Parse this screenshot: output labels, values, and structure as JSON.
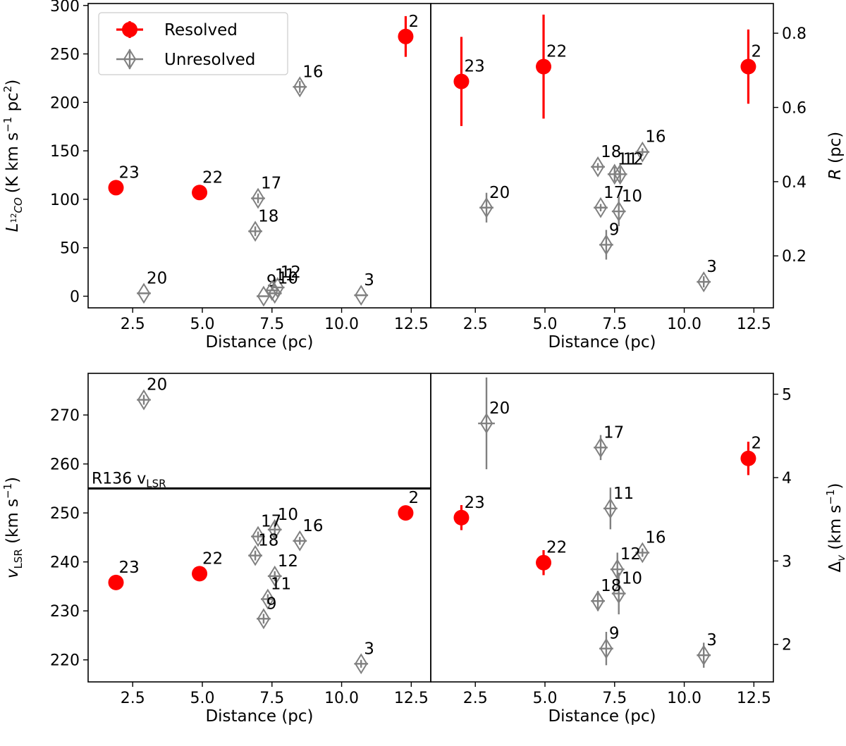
{
  "colors": {
    "resolved": "#ff0000",
    "unresolved": "#808080",
    "axis": "#000000"
  },
  "legend": {
    "resolved_label": "Resolved",
    "unresolved_label": "Unresolved"
  },
  "chart_data": [
    {
      "id": "top-left",
      "type": "scatter",
      "xlabel": "Distance (pc)",
      "ylabel_main": "L",
      "ylabel_sub": "12",
      "ylabel_sub2": "CO",
      "ylabel_paren": "(K km s",
      "ylabel_exp1": "−1",
      "ylabel_mid": " pc",
      "ylabel_exp2": "2",
      "ylabel_close": ")",
      "xlim": [
        0.9,
        13.2
      ],
      "ylim": [
        -12,
        302
      ],
      "xticks": [
        2.5,
        5.0,
        7.5,
        10.0,
        12.5
      ],
      "xtick_labels": [
        "2.5",
        "5.0",
        "7.5",
        "10.0",
        "12.5"
      ],
      "yticks": [
        0,
        50,
        100,
        150,
        200,
        250,
        300
      ],
      "ytick_labels": [
        "0",
        "50",
        "100",
        "150",
        "200",
        "250",
        "300"
      ],
      "yaxis_side": "left",
      "series": [
        {
          "name": "Resolved",
          "points": [
            {
              "label": "2",
              "x": 12.3,
              "y": 268,
              "xerr": 0.25,
              "yerr": 21
            },
            {
              "label": "23",
              "x": 1.9,
              "y": 112,
              "xerr": 0.25,
              "yerr": 0
            },
            {
              "label": "22",
              "x": 4.9,
              "y": 107,
              "xerr": 0.25,
              "yerr": 0
            }
          ]
        },
        {
          "name": "Unresolved",
          "points": [
            {
              "label": "16",
              "x": 8.5,
              "y": 216,
              "xerr": 0.25,
              "yerr": 6
            },
            {
              "label": "17",
              "x": 7.0,
              "y": 101,
              "xerr": 0.25,
              "yerr": 5
            },
            {
              "label": "18",
              "x": 6.9,
              "y": 67,
              "xerr": 0.25,
              "yerr": 5
            },
            {
              "label": "20",
              "x": 2.9,
              "y": 3,
              "xerr": 0.25,
              "yerr": 0
            },
            {
              "label": "3",
              "x": 10.7,
              "y": 1,
              "xerr": 0.25,
              "yerr": 0
            },
            {
              "label": "9",
              "x": 7.2,
              "y": 0,
              "xerr": 0.25,
              "yerr": 0
            },
            {
              "label": "11",
              "x": 7.5,
              "y": 6,
              "xerr": 0.25,
              "yerr": 0
            },
            {
              "label": "12",
              "x": 7.7,
              "y": 9,
              "xerr": 0.25,
              "yerr": 0
            },
            {
              "label": "10",
              "x": 7.6,
              "y": 3,
              "xerr": 0.25,
              "yerr": 0
            }
          ]
        }
      ]
    },
    {
      "id": "top-right",
      "type": "scatter",
      "xlabel": "Distance (pc)",
      "ylabel_main": "R",
      "ylabel_rest": " (pc)",
      "xlim": [
        0.9,
        13.2
      ],
      "ylim": [
        0.06,
        0.88
      ],
      "xticks": [
        2.5,
        5.0,
        7.5,
        10.0,
        12.5
      ],
      "xtick_labels": [
        "2.5",
        "5.0",
        "7.5",
        "10.0",
        "12.5"
      ],
      "yticks": [
        0.2,
        0.4,
        0.6,
        0.8
      ],
      "ytick_labels": [
        "0.2",
        "0.4",
        "0.6",
        "0.8"
      ],
      "yaxis_side": "right",
      "series": [
        {
          "name": "Resolved",
          "points": [
            {
              "label": "23",
              "x": 2.0,
              "y": 0.67,
              "xerr": 0.25,
              "yerr": 0.12
            },
            {
              "label": "22",
              "x": 4.95,
              "y": 0.71,
              "xerr": 0.25,
              "yerr": 0.14
            },
            {
              "label": "2",
              "x": 12.3,
              "y": 0.71,
              "xerr": 0.25,
              "yerr": 0.1
            }
          ]
        },
        {
          "name": "Unresolved",
          "points": [
            {
              "label": "16",
              "x": 8.5,
              "y": 0.48,
              "xerr": 0.25,
              "yerr": 0.01
            },
            {
              "label": "18",
              "x": 6.9,
              "y": 0.44,
              "xerr": 0.25,
              "yerr": 0.01
            },
            {
              "label": "11",
              "x": 7.5,
              "y": 0.42,
              "xerr": 0.25,
              "yerr": 0.02
            },
            {
              "label": "12",
              "x": 7.7,
              "y": 0.42,
              "xerr": 0.25,
              "yerr": 0.02
            },
            {
              "label": "20",
              "x": 2.9,
              "y": 0.33,
              "xerr": 0.25,
              "yerr": 0.04
            },
            {
              "label": "17",
              "x": 7.0,
              "y": 0.33,
              "xerr": 0.25,
              "yerr": 0.01
            },
            {
              "label": "10",
              "x": 7.65,
              "y": 0.32,
              "xerr": 0.25,
              "yerr": 0.04
            },
            {
              "label": "9",
              "x": 7.2,
              "y": 0.23,
              "xerr": 0.25,
              "yerr": 0.04
            },
            {
              "label": "3",
              "x": 10.7,
              "y": 0.13,
              "xerr": 0.25,
              "yerr": 0.015
            }
          ]
        }
      ]
    },
    {
      "id": "bottom-left",
      "type": "scatter",
      "xlabel": "Distance (pc)",
      "ylabel_main": "v",
      "ylabel_sub": "LSR",
      "ylabel_rest": " (km s",
      "ylabel_exp1": "−1",
      "ylabel_close": ")",
      "xlim": [
        0.9,
        13.2
      ],
      "ylim": [
        215.5,
        278.5
      ],
      "xticks": [
        2.5,
        5.0,
        7.5,
        10.0,
        12.5
      ],
      "xtick_labels": [
        "2.5",
        "5.0",
        "7.5",
        "10.0",
        "12.5"
      ],
      "yticks": [
        220,
        230,
        240,
        250,
        260,
        270
      ],
      "ytick_labels": [
        "220",
        "230",
        "240",
        "250",
        "260",
        "270"
      ],
      "yaxis_side": "left",
      "hline": {
        "y": 255,
        "label_main": "R136 v",
        "label_sub": "LSR"
      },
      "series": [
        {
          "name": "Resolved",
          "points": [
            {
              "label": "2",
              "x": 12.3,
              "y": 250.0,
              "xerr": 0.25,
              "yerr": 0
            },
            {
              "label": "22",
              "x": 4.9,
              "y": 237.6,
              "xerr": 0.25,
              "yerr": 0
            },
            {
              "label": "23",
              "x": 1.9,
              "y": 235.8,
              "xerr": 0.25,
              "yerr": 0
            }
          ]
        },
        {
          "name": "Unresolved",
          "points": [
            {
              "label": "20",
              "x": 2.9,
              "y": 273.1,
              "xerr": 0.25,
              "yerr": 1.0
            },
            {
              "label": "10",
              "x": 7.6,
              "y": 246.6,
              "xerr": 0.25,
              "yerr": 1.5
            },
            {
              "label": "17",
              "x": 7.0,
              "y": 245.2,
              "xerr": 0.25,
              "yerr": 1.0
            },
            {
              "label": "16",
              "x": 8.5,
              "y": 244.3,
              "xerr": 0.25,
              "yerr": 0.8
            },
            {
              "label": "18",
              "x": 6.9,
              "y": 241.3,
              "xerr": 0.25,
              "yerr": 1.0
            },
            {
              "label": "12",
              "x": 7.6,
              "y": 237.1,
              "xerr": 0.25,
              "yerr": 1.0
            },
            {
              "label": "11",
              "x": 7.35,
              "y": 232.4,
              "xerr": 0.25,
              "yerr": 1.0
            },
            {
              "label": "9",
              "x": 7.2,
              "y": 228.4,
              "xerr": 0.25,
              "yerr": 1.0
            },
            {
              "label": "3",
              "x": 10.7,
              "y": 219.2,
              "xerr": 0.25,
              "yerr": 0.8
            }
          ]
        }
      ]
    },
    {
      "id": "bottom-right",
      "type": "scatter",
      "xlabel": "Distance (pc)",
      "ylabel_main": "Δ",
      "ylabel_sub": "v",
      "ylabel_rest": " (km s",
      "ylabel_exp1": "−1",
      "ylabel_close": ")",
      "xlim": [
        0.9,
        13.2
      ],
      "ylim": [
        1.55,
        5.25
      ],
      "xticks": [
        2.5,
        5.0,
        7.5,
        10.0,
        12.5
      ],
      "xtick_labels": [
        "2.5",
        "5.0",
        "7.5",
        "10.0",
        "12.5"
      ],
      "yticks": [
        2,
        3,
        4,
        5
      ],
      "ytick_labels": [
        "2",
        "3",
        "4",
        "5"
      ],
      "yaxis_side": "right",
      "series": [
        {
          "name": "Resolved",
          "points": [
            {
              "label": "2",
              "x": 12.3,
              "y": 4.23,
              "xerr": 0.25,
              "yerr": 0.2
            },
            {
              "label": "23",
              "x": 2.0,
              "y": 3.52,
              "xerr": 0.25,
              "yerr": 0.15
            },
            {
              "label": "22",
              "x": 4.95,
              "y": 2.98,
              "xerr": 0.25,
              "yerr": 0.15
            }
          ]
        },
        {
          "name": "Unresolved",
          "points": [
            {
              "label": "20",
              "x": 2.9,
              "y": 4.65,
              "xerr": 0.3,
              "yerr": 0.55
            },
            {
              "label": "17",
              "x": 7.0,
              "y": 4.36,
              "xerr": 0.25,
              "yerr": 0.15
            },
            {
              "label": "11",
              "x": 7.35,
              "y": 3.63,
              "xerr": 0.25,
              "yerr": 0.25
            },
            {
              "label": "16",
              "x": 8.5,
              "y": 3.1,
              "xerr": 0.25,
              "yerr": 0.05
            },
            {
              "label": "12",
              "x": 7.6,
              "y": 2.9,
              "xerr": 0.25,
              "yerr": 0.2
            },
            {
              "label": "10",
              "x": 7.65,
              "y": 2.61,
              "xerr": 0.25,
              "yerr": 0.25
            },
            {
              "label": "18",
              "x": 6.9,
              "y": 2.52,
              "xerr": 0.25,
              "yerr": 0.12
            },
            {
              "label": "9",
              "x": 7.2,
              "y": 1.95,
              "xerr": 0.25,
              "yerr": 0.2
            },
            {
              "label": "3",
              "x": 10.7,
              "y": 1.87,
              "xerr": 0.25,
              "yerr": 0.15
            }
          ]
        }
      ]
    }
  ]
}
